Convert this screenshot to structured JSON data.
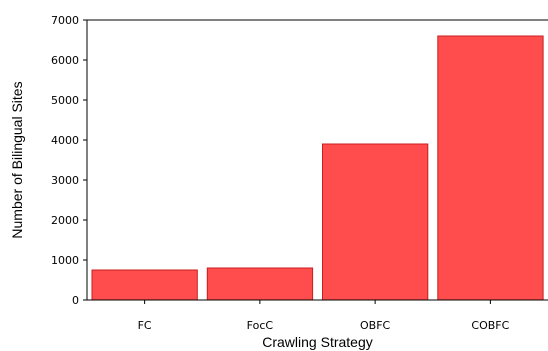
{
  "chart_data": {
    "type": "bar",
    "categories": [
      "FC",
      "FocC",
      "OBFC",
      "COBFC"
    ],
    "values": [
      750,
      800,
      3900,
      6600
    ],
    "xlabel": "Crawling Strategy",
    "ylabel": "Number of Bilingual Sites",
    "ylim": [
      0,
      7000
    ],
    "yticks": [
      0,
      1000,
      2000,
      3000,
      4000,
      5000,
      6000,
      7000
    ],
    "grid": false,
    "legend": "none",
    "colors": {
      "bar_fill": "#ff4d4d",
      "bar_stroke": "#c81e1e",
      "axis": "#000000"
    }
  }
}
